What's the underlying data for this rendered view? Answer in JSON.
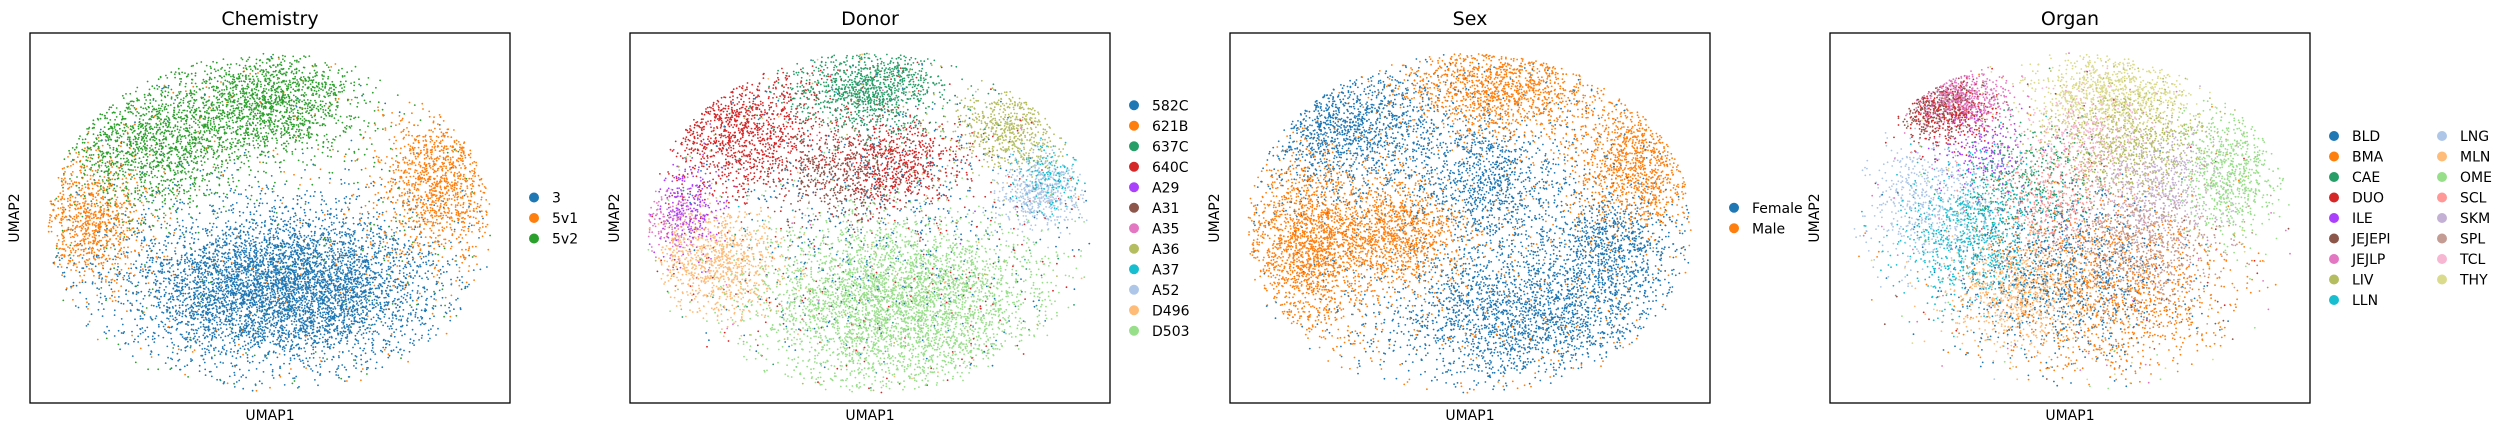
{
  "chart_data": [
    {
      "type": "scatter",
      "title": "Chemistry",
      "xlabel": "UMAP1",
      "ylabel": "UMAP2",
      "grid": false,
      "legend_position": "right",
      "series": [
        {
          "name": "3",
          "color": "#1f77b4",
          "points": 14000
        },
        {
          "name": "5v1",
          "color": "#ff7f0e",
          "points": 5000
        },
        {
          "name": "5v2",
          "color": "#2ca02c",
          "points": 8000
        }
      ]
    },
    {
      "type": "scatter",
      "title": "Donor",
      "xlabel": "UMAP1",
      "ylabel": "UMAP2",
      "grid": false,
      "legend_position": "right",
      "series": [
        {
          "name": "582C",
          "color": "#1f77b4"
        },
        {
          "name": "621B",
          "color": "#ff7f0e"
        },
        {
          "name": "637C",
          "color": "#279e68"
        },
        {
          "name": "640C",
          "color": "#d62728"
        },
        {
          "name": "A29",
          "color": "#aa40fc"
        },
        {
          "name": "A31",
          "color": "#8c564b"
        },
        {
          "name": "A35",
          "color": "#e377c2"
        },
        {
          "name": "A36",
          "color": "#b5bd61"
        },
        {
          "name": "A37",
          "color": "#17becf"
        },
        {
          "name": "A52",
          "color": "#aec7e8"
        },
        {
          "name": "D496",
          "color": "#ffbb78"
        },
        {
          "name": "D503",
          "color": "#98df8a"
        }
      ]
    },
    {
      "type": "scatter",
      "title": "Sex",
      "xlabel": "UMAP1",
      "ylabel": "UMAP2",
      "grid": false,
      "legend_position": "right",
      "series": [
        {
          "name": "Female",
          "color": "#1f77b4"
        },
        {
          "name": "Male",
          "color": "#ff7f0e"
        }
      ]
    },
    {
      "type": "scatter",
      "title": "Organ",
      "xlabel": "UMAP1",
      "ylabel": "UMAP2",
      "grid": false,
      "legend_position": "right",
      "series": [
        {
          "name": "BLD",
          "color": "#1f77b4"
        },
        {
          "name": "BMA",
          "color": "#ff7f0e"
        },
        {
          "name": "CAE",
          "color": "#279e68"
        },
        {
          "name": "DUO",
          "color": "#d62728"
        },
        {
          "name": "ILE",
          "color": "#aa40fc"
        },
        {
          "name": "JEJEPI",
          "color": "#8c564b"
        },
        {
          "name": "JEJLP",
          "color": "#e377c2"
        },
        {
          "name": "LIV",
          "color": "#b5bd61"
        },
        {
          "name": "LLN",
          "color": "#17becf"
        },
        {
          "name": "LNG",
          "color": "#aec7e8"
        },
        {
          "name": "MLN",
          "color": "#ffbb78"
        },
        {
          "name": "OME",
          "color": "#98df8a"
        },
        {
          "name": "SCL",
          "color": "#ff9896"
        },
        {
          "name": "SKM",
          "color": "#c5b0d5"
        },
        {
          "name": "SPL",
          "color": "#c49c94"
        },
        {
          "name": "TCL",
          "color": "#f7b6d2"
        },
        {
          "name": "THY",
          "color": "#dbdb8d"
        }
      ]
    }
  ]
}
